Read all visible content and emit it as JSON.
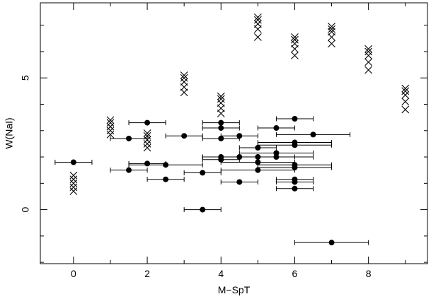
{
  "chart_data": {
    "type": "scatter",
    "title": "",
    "xlabel": "M−SpT",
    "ylabel": "W(NaI)",
    "xlim": [
      -0.9,
      9.6
    ],
    "ylim": [
      -2.05,
      7.85
    ],
    "xticks": [
      0,
      2,
      4,
      6,
      8
    ],
    "xtick_labels": [
      "0",
      "2",
      "4",
      "6",
      "8"
    ],
    "yticks": [
      0,
      5
    ],
    "ytick_labels": [
      "0",
      "5"
    ],
    "grid": false,
    "legend": "none",
    "series": [
      {
        "marker": "filled-circle",
        "with_x_error_bars": true,
        "points": [
          {
            "x": 0.0,
            "y": 1.8,
            "xerr": 0.5
          },
          {
            "x": 1.5,
            "y": 2.7,
            "xerr": 0.5
          },
          {
            "x": 1.5,
            "y": 1.5,
            "xerr": 0.5
          },
          {
            "x": 2.0,
            "y": 3.3,
            "xerr": 0.5
          },
          {
            "x": 2.0,
            "y": 1.75,
            "xerr": 0.5
          },
          {
            "x": 2.5,
            "y": 1.7,
            "xerr": 1.0
          },
          {
            "x": 2.5,
            "y": 1.15,
            "xerr": 0.5
          },
          {
            "x": 3.0,
            "y": 2.8,
            "xerr": 0.5
          },
          {
            "x": 3.5,
            "y": 1.4,
            "xerr": 0.5
          },
          {
            "x": 3.5,
            "y": 0.0,
            "xerr": 0.5
          },
          {
            "x": 4.0,
            "y": 3.3,
            "xerr": 0.5
          },
          {
            "x": 4.0,
            "y": 3.1,
            "xerr": 0.5
          },
          {
            "x": 4.0,
            "y": 2.7,
            "xerr": 0.5
          },
          {
            "x": 4.0,
            "y": 2.0,
            "xerr": 0.5
          },
          {
            "x": 4.0,
            "y": 1.9,
            "xerr": 0.5
          },
          {
            "x": 4.5,
            "y": 2.8,
            "xerr": 0.5
          },
          {
            "x": 4.5,
            "y": 2.0,
            "xerr": 1.0
          },
          {
            "x": 4.5,
            "y": 1.05,
            "xerr": 0.5
          },
          {
            "x": 5.0,
            "y": 2.35,
            "xerr": 0.5
          },
          {
            "x": 5.0,
            "y": 2.0,
            "xerr": 1.0
          },
          {
            "x": 5.0,
            "y": 1.8,
            "xerr": 1.0
          },
          {
            "x": 5.0,
            "y": 1.5,
            "xerr": 1.0
          },
          {
            "x": 5.5,
            "y": 3.1,
            "xerr": 0.5
          },
          {
            "x": 5.5,
            "y": 2.15,
            "xerr": 1.0
          },
          {
            "x": 5.5,
            "y": 2.0,
            "xerr": 1.0
          },
          {
            "x": 6.0,
            "y": 3.45,
            "xerr": 0.5
          },
          {
            "x": 6.0,
            "y": 2.55,
            "xerr": 1.0
          },
          {
            "x": 6.0,
            "y": 2.45,
            "xerr": 1.0
          },
          {
            "x": 6.0,
            "y": 1.7,
            "xerr": 1.0
          },
          {
            "x": 6.0,
            "y": 1.6,
            "xerr": 1.0
          },
          {
            "x": 6.0,
            "y": 1.15,
            "xerr": 0.5
          },
          {
            "x": 6.0,
            "y": 1.05,
            "xerr": 0.5
          },
          {
            "x": 6.0,
            "y": 0.8,
            "xerr": 0.5
          },
          {
            "x": 6.5,
            "y": 2.85,
            "xerr": 1.0
          },
          {
            "x": 7.0,
            "y": -1.25,
            "xerr": 1.0
          }
        ]
      },
      {
        "marker": "x-cross",
        "with_x_error_bars": false,
        "points": [
          {
            "x": 0,
            "y": 0.7
          },
          {
            "x": 0,
            "y": 0.85
          },
          {
            "x": 0,
            "y": 1.0
          },
          {
            "x": 0,
            "y": 1.15
          },
          {
            "x": 0,
            "y": 1.3
          },
          {
            "x": 1,
            "y": 2.85
          },
          {
            "x": 1,
            "y": 3.0
          },
          {
            "x": 1,
            "y": 3.15
          },
          {
            "x": 1,
            "y": 3.3
          },
          {
            "x": 1,
            "y": 3.4
          },
          {
            "x": 2,
            "y": 2.35
          },
          {
            "x": 2,
            "y": 2.5
          },
          {
            "x": 2,
            "y": 2.65
          },
          {
            "x": 2,
            "y": 2.8
          },
          {
            "x": 2,
            "y": 2.9
          },
          {
            "x": 3,
            "y": 4.45
          },
          {
            "x": 3,
            "y": 4.65
          },
          {
            "x": 3,
            "y": 4.85
          },
          {
            "x": 3,
            "y": 5.0
          },
          {
            "x": 3,
            "y": 5.1
          },
          {
            "x": 4,
            "y": 3.65
          },
          {
            "x": 4,
            "y": 3.85
          },
          {
            "x": 4,
            "y": 4.05
          },
          {
            "x": 4,
            "y": 4.2
          },
          {
            "x": 4,
            "y": 4.3
          },
          {
            "x": 5,
            "y": 6.55
          },
          {
            "x": 5,
            "y": 6.85
          },
          {
            "x": 5,
            "y": 7.05
          },
          {
            "x": 5,
            "y": 7.2
          },
          {
            "x": 5,
            "y": 7.3
          },
          {
            "x": 6,
            "y": 5.85
          },
          {
            "x": 6,
            "y": 6.1
          },
          {
            "x": 6,
            "y": 6.3
          },
          {
            "x": 6,
            "y": 6.45
          },
          {
            "x": 6,
            "y": 6.55
          },
          {
            "x": 7,
            "y": 6.3
          },
          {
            "x": 7,
            "y": 6.55
          },
          {
            "x": 7,
            "y": 6.75
          },
          {
            "x": 7,
            "y": 6.85
          },
          {
            "x": 7,
            "y": 6.95
          },
          {
            "x": 8,
            "y": 5.3
          },
          {
            "x": 8,
            "y": 5.6
          },
          {
            "x": 8,
            "y": 5.85
          },
          {
            "x": 8,
            "y": 6.0
          },
          {
            "x": 8,
            "y": 6.1
          },
          {
            "x": 9,
            "y": 3.8
          },
          {
            "x": 9,
            "y": 4.1
          },
          {
            "x": 9,
            "y": 4.35
          },
          {
            "x": 9,
            "y": 4.5
          },
          {
            "x": 9,
            "y": 4.6
          }
        ]
      }
    ]
  }
}
